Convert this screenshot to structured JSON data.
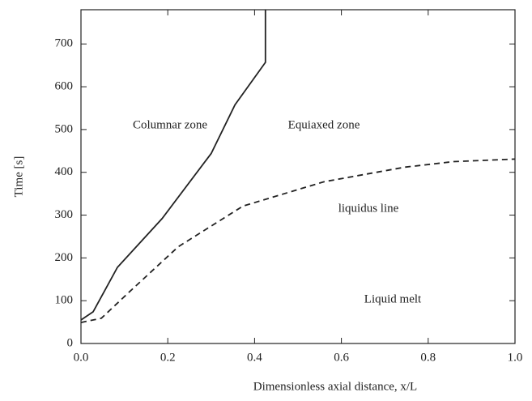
{
  "chart_data": {
    "type": "line",
    "xlabel": "Dimensionless axial distance, x/L",
    "ylabel": "Time [s]",
    "annotations": [
      "Columnar zone",
      "Equiaxed zone",
      "liquidus line",
      "Liquid melt"
    ],
    "series": [
      {
        "color": "#222222",
        "dash": false,
        "x": [
          0,
          0.028,
          0.084,
          0.187,
          0.3,
          0.355,
          0.425,
          0.425
        ],
        "values": [
          55,
          74,
          178,
          292,
          444,
          558,
          657,
          780
        ]
      },
      {
        "color": "#222222",
        "dash": true,
        "x": [
          0,
          0.047,
          0.112,
          0.224,
          0.373,
          0.56,
          0.746,
          0.858,
          1.0
        ],
        "values": [
          49,
          59,
          121,
          226,
          321,
          378,
          412,
          425,
          431
        ]
      }
    ],
    "xlim": [
      0,
      1.0
    ],
    "ylim": [
      0,
      780
    ],
    "xticks": [
      {
        "value": 0,
        "label": "0.0"
      },
      0.2,
      0.4,
      0.6,
      0.8,
      {
        "value": 1.0,
        "label": "1.0"
      }
    ],
    "yticks": [
      0,
      100,
      200,
      300,
      400,
      500,
      600,
      700
    ]
  }
}
